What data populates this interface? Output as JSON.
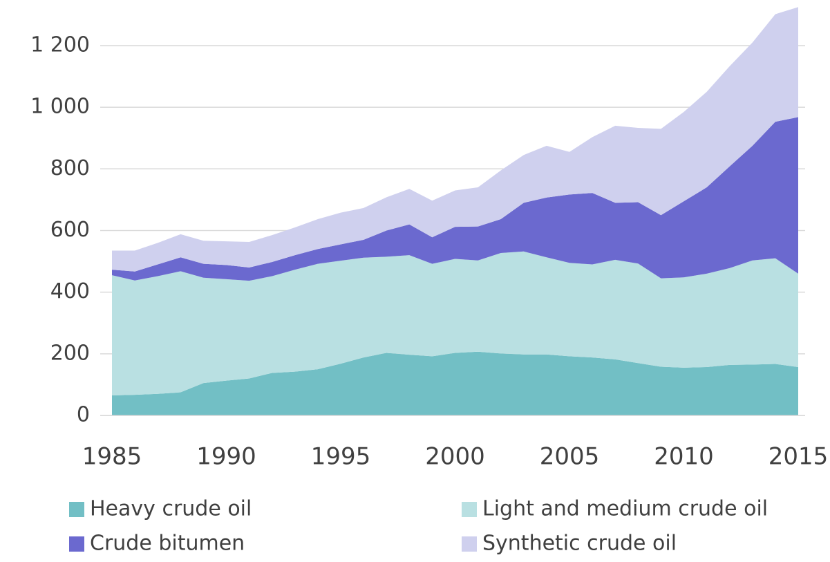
{
  "chart_data": {
    "type": "stacked_area",
    "x": [
      1985,
      1986,
      1987,
      1988,
      1989,
      1990,
      1991,
      1992,
      1993,
      1994,
      1995,
      1996,
      1997,
      1998,
      1999,
      2000,
      2001,
      2002,
      2003,
      2004,
      2005,
      2006,
      2007,
      2008,
      2009,
      2010,
      2011,
      2012,
      2013,
      2014,
      2015
    ],
    "series": [
      {
        "name": "Heavy crude oil",
        "color": "#72bfc5",
        "values": [
          65,
          67,
          70,
          75,
          105,
          113,
          120,
          138,
          142,
          150,
          168,
          188,
          203,
          197,
          192,
          203,
          207,
          201,
          198,
          198,
          192,
          188,
          182,
          170,
          158,
          155,
          157,
          164,
          165,
          167,
          157
        ]
      },
      {
        "name": "Light and medium crude oil",
        "color": "#b9e0e2",
        "values": [
          390,
          371,
          382,
          393,
          342,
          329,
          317,
          314,
          331,
          342,
          334,
          324,
          312,
          323,
          300,
          305,
          296,
          326,
          334,
          315,
          303,
          302,
          323,
          323,
          287,
          293,
          303,
          314,
          338,
          343,
          303
        ]
      },
      {
        "name": "Crude bitumen",
        "color": "#6b69cf",
        "values": [
          18,
          29,
          38,
          45,
          45,
          46,
          43,
          46,
          47,
          48,
          53,
          58,
          85,
          100,
          86,
          104,
          110,
          110,
          158,
          194,
          222,
          232,
          185,
          199,
          205,
          247,
          280,
          330,
          372,
          443,
          508
        ]
      },
      {
        "name": "Synthetic crude oil",
        "color": "#cfd0ee",
        "values": [
          62,
          68,
          70,
          75,
          75,
          77,
          83,
          87,
          90,
          97,
          103,
          103,
          108,
          115,
          119,
          118,
          127,
          158,
          155,
          168,
          138,
          181,
          250,
          241,
          280,
          290,
          310,
          325,
          335,
          349,
          357
        ]
      }
    ],
    "xlim": [
      1985,
      2015
    ],
    "xticks": [
      1985,
      1990,
      1995,
      2000,
      2005,
      2010,
      2015
    ],
    "ylim": [
      0,
      1330
    ],
    "yticks": [
      0,
      200,
      400,
      600,
      800,
      {
        "value": 1000,
        "label": "1 000"
      },
      {
        "value": 1200,
        "label": "1 200"
      }
    ],
    "grid": true
  }
}
